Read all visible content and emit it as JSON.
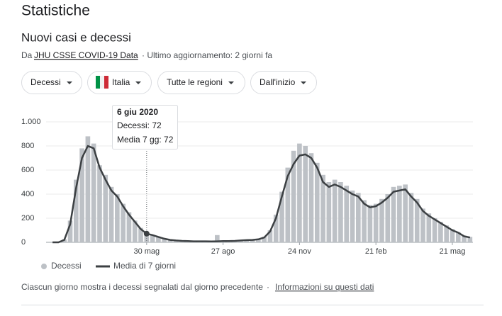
{
  "header": {
    "title": "Statistiche",
    "subtitle": "Nuovi casi e decessi",
    "source_prefix": "Da",
    "source_link": "JHU CSSE COVID-19 Data",
    "updated": "· Ultimo aggiornamento: 2 giorni fa"
  },
  "filters": [
    "Decessi",
    "Italia",
    "Tutte le regioni",
    "Dall'inizio"
  ],
  "tooltip": {
    "date": "6 giu 2020",
    "value": "Decessi: 72",
    "average": "Media 7 gg: 72"
  },
  "footer": {
    "note": "Ciascun giorno mostra i decessi segnalati dal giorno precedente",
    "separator": "·",
    "link": "Informazioni su questi dati"
  },
  "chart_data": {
    "type": "bar_line",
    "categories": [
      null,
      null,
      null,
      null,
      null,
      null,
      null,
      null,
      null,
      null,
      null,
      null,
      null,
      null,
      null,
      null,
      "30 mag",
      null,
      null,
      null,
      null,
      null,
      null,
      null,
      null,
      null,
      null,
      null,
      null,
      "27 ago",
      null,
      null,
      null,
      null,
      null,
      null,
      null,
      null,
      null,
      null,
      null,
      null,
      "24 nov",
      null,
      null,
      null,
      null,
      null,
      null,
      null,
      null,
      null,
      null,
      null,
      null,
      "21 feb",
      null,
      null,
      null,
      null,
      null,
      null,
      null,
      null,
      null,
      null,
      null,
      null,
      "21 mag",
      null,
      null,
      null
    ],
    "series": [
      {
        "name": "Decessi",
        "color": "#bdc1c6",
        "values": [
          0,
          0,
          25,
          180,
          520,
          780,
          880,
          820,
          640,
          560,
          460,
          400,
          320,
          250,
          180,
          120,
          72,
          62,
          48,
          32,
          22,
          18,
          14,
          12,
          10,
          9,
          10,
          8,
          60,
          12,
          12,
          14,
          17,
          20,
          22,
          28,
          45,
          100,
          230,
          420,
          620,
          760,
          820,
          800,
          740,
          660,
          560,
          500,
          520,
          500,
          470,
          430,
          410,
          350,
          310,
          320,
          360,
          400,
          460,
          470,
          480,
          410,
          360,
          280,
          240,
          200,
          170,
          140,
          110,
          85,
          55,
          45
        ]
      },
      {
        "name": "Media di 7 giorni",
        "color": "#3c4043",
        "values": [
          0,
          0,
          20,
          150,
          450,
          700,
          800,
          780,
          620,
          520,
          430,
          380,
          300,
          230,
          170,
          110,
          72,
          60,
          45,
          30,
          20,
          15,
          12,
          10,
          8,
          8,
          8,
          7,
          8,
          10,
          10,
          12,
          15,
          18,
          20,
          25,
          40,
          90,
          200,
          380,
          550,
          650,
          720,
          730,
          700,
          620,
          500,
          460,
          480,
          460,
          430,
          400,
          380,
          320,
          290,
          300,
          330,
          370,
          420,
          430,
          440,
          380,
          330,
          260,
          220,
          190,
          160,
          130,
          100,
          80,
          50,
          40
        ]
      }
    ],
    "ylim": [
      0,
      1000
    ],
    "yticks": [
      0,
      200,
      400,
      600,
      800,
      {
        "value": 1000,
        "label": "1.000"
      }
    ],
    "grid": true
  }
}
